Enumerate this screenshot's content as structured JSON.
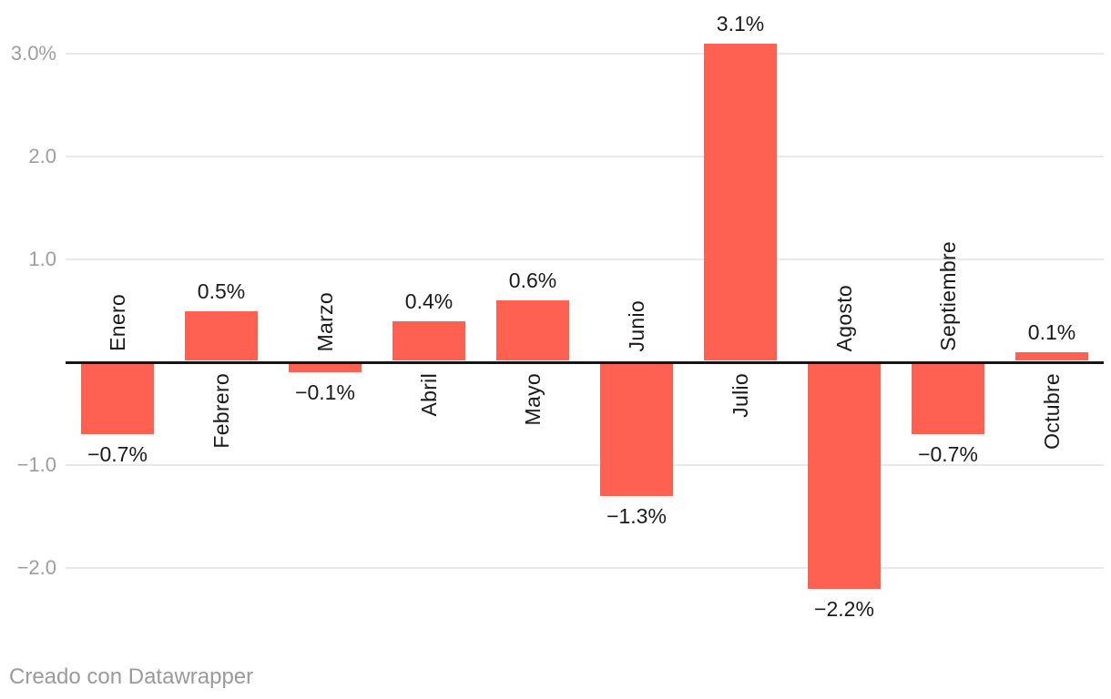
{
  "chart_data": {
    "type": "bar",
    "title": "",
    "categories": [
      "Enero",
      "Febrero",
      "Marzo",
      "Abril",
      "Mayo",
      "Junio",
      "Julio",
      "Agosto",
      "Septiembre",
      "Octubre"
    ],
    "values": [
      -0.7,
      0.5,
      -0.1,
      0.4,
      0.6,
      -1.3,
      3.1,
      -2.2,
      -0.7,
      0.1
    ],
    "value_labels": [
      "−0.7%",
      "0.5%",
      "−0.1%",
      "0.4%",
      "0.6%",
      "−1.3%",
      "3.1%",
      "−2.2%",
      "−0.7%",
      "0.1%"
    ],
    "unit_suffix": "%",
    "xlabel": "",
    "ylabel": "",
    "y_axis": {
      "ticks": [
        {
          "label": "3.0%",
          "value": 3
        },
        {
          "label": "2.0",
          "value": 2
        },
        {
          "label": "1.0",
          "value": 1
        },
        {
          "label": "−1.0",
          "value": -1
        },
        {
          "label": "−2.0",
          "value": -2
        }
      ],
      "range": [
        -2.7,
        3.3
      ]
    },
    "grid": true,
    "legend": "none"
  },
  "colors": {
    "bar": "#fe6151",
    "value_label": "#1a1a1a",
    "category_label": "#1a1a1a",
    "axis_tick_label": "#9d9d9d",
    "gridline": "#e8e8e8",
    "baseline": "#161616",
    "background": "#ffffff",
    "footer_text": "#9a9a9a"
  },
  "footer": {
    "credit": "Creado con Datawrapper"
  }
}
